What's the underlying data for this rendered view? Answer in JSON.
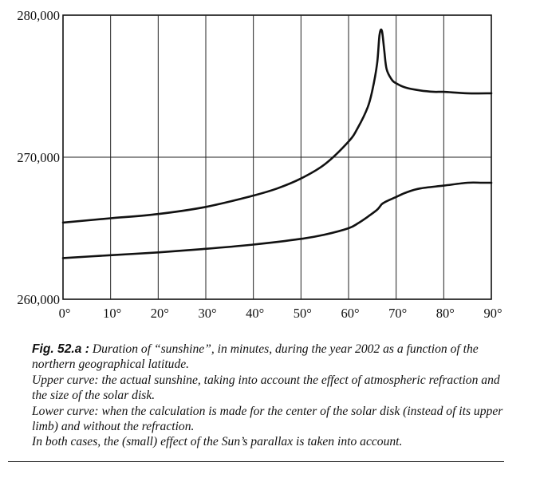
{
  "chart_data": {
    "type": "line",
    "title": "",
    "xlabel": "",
    "ylabel": "",
    "xlim": [
      0,
      90
    ],
    "ylim": [
      260000,
      280000
    ],
    "x_ticks": [
      0,
      10,
      20,
      30,
      40,
      50,
      60,
      70,
      80,
      90
    ],
    "x_tick_labels": [
      "0°",
      "10°",
      "20°",
      "30°",
      "40°",
      "50°",
      "60°",
      "70°",
      "80°",
      "90°"
    ],
    "y_ticks": [
      260000,
      270000,
      280000
    ],
    "y_tick_labels": [
      "260,000",
      "270,000",
      "280,000"
    ],
    "grid": true,
    "legend": "none",
    "series": [
      {
        "x": [
          0,
          10,
          20,
          30,
          40,
          45,
          50,
          55,
          60,
          62,
          64,
          65,
          66,
          66.5,
          67,
          67.5,
          68,
          69,
          70,
          72,
          75,
          78,
          80,
          85,
          90
        ],
        "y": [
          265400,
          265700,
          266000,
          266500,
          267300,
          267800,
          268500,
          269500,
          271100,
          272100,
          273500,
          274700,
          276600,
          278600,
          278900,
          277500,
          276200,
          275500,
          275200,
          274900,
          274700,
          274600,
          274600,
          274500,
          274500
        ]
      },
      {
        "x": [
          0,
          10,
          20,
          30,
          40,
          50,
          55,
          60,
          62,
          64,
          66,
          67,
          68,
          70,
          72,
          75,
          80,
          85,
          88,
          90
        ],
        "y": [
          262900,
          263100,
          263300,
          263550,
          263850,
          264250,
          264550,
          265000,
          265350,
          265800,
          266300,
          266700,
          266900,
          267200,
          267500,
          267800,
          268000,
          268200,
          268200,
          268200
        ]
      }
    ]
  },
  "caption": {
    "fig_label": "Fig. 52.a :",
    "line1": " Duration of “sunshine”, in minutes, during the year 2002 as a function of the northern geographical latitude.",
    "line2": "Upper curve: the actual sunshine, taking into account the effect of atmospheric refraction and the size of the solar disk.",
    "line3": "Lower curve: when the calculation is made for the center of the solar disk (instead of its upper limb) and without the refraction.",
    "line4": "In both cases, the (small) effect of the Sun’s parallax is taken into account."
  }
}
